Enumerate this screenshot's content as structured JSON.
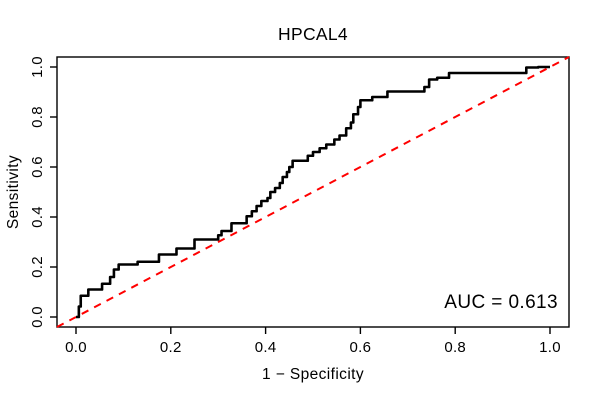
{
  "figure": {
    "background": "#ffffff",
    "frame_color": "#000000"
  },
  "chart_data": {
    "type": "line",
    "subtype": "roc-step-curve",
    "title": "HPCAL4",
    "xlabel": "1 − Specificity",
    "ylabel": "Sensitivity",
    "annotation": "AUC = 0.613",
    "auc_value": 0.613,
    "xlim": [
      0.0,
      1.0
    ],
    "ylim": [
      0.0,
      1.0
    ],
    "grid": false,
    "legend": "none",
    "x_ticks": [
      0.0,
      0.2,
      0.4,
      0.6,
      0.8,
      1.0
    ],
    "x_tick_labels": [
      "0.0",
      "0.2",
      "0.4",
      "0.6",
      "0.8",
      "1.0"
    ],
    "y_ticks": [
      0.0,
      0.2,
      0.4,
      0.6,
      0.8,
      1.0
    ],
    "y_tick_labels": [
      "0.0",
      "0.2",
      "0.4",
      "0.6",
      "0.8",
      "1.0"
    ],
    "series": [
      {
        "name": "ROC curve",
        "color": "#000000",
        "line_style": "solid",
        "line_width": 2.6,
        "points": [
          [
            0.0,
            0.0
          ],
          [
            0.006,
            0.0
          ],
          [
            0.006,
            0.042
          ],
          [
            0.01,
            0.042
          ],
          [
            0.01,
            0.085
          ],
          [
            0.026,
            0.085
          ],
          [
            0.026,
            0.11
          ],
          [
            0.055,
            0.11
          ],
          [
            0.055,
            0.133
          ],
          [
            0.072,
            0.133
          ],
          [
            0.072,
            0.16
          ],
          [
            0.08,
            0.16
          ],
          [
            0.08,
            0.19
          ],
          [
            0.09,
            0.19
          ],
          [
            0.09,
            0.21
          ],
          [
            0.13,
            0.21
          ],
          [
            0.13,
            0.221
          ],
          [
            0.175,
            0.221
          ],
          [
            0.175,
            0.25
          ],
          [
            0.212,
            0.25
          ],
          [
            0.212,
            0.274
          ],
          [
            0.25,
            0.274
          ],
          [
            0.25,
            0.31
          ],
          [
            0.3,
            0.31
          ],
          [
            0.3,
            0.327
          ],
          [
            0.307,
            0.327
          ],
          [
            0.307,
            0.344
          ],
          [
            0.328,
            0.344
          ],
          [
            0.328,
            0.375
          ],
          [
            0.36,
            0.375
          ],
          [
            0.36,
            0.403
          ],
          [
            0.371,
            0.403
          ],
          [
            0.371,
            0.423
          ],
          [
            0.381,
            0.423
          ],
          [
            0.381,
            0.444
          ],
          [
            0.391,
            0.444
          ],
          [
            0.391,
            0.464
          ],
          [
            0.404,
            0.464
          ],
          [
            0.404,
            0.476
          ],
          [
            0.41,
            0.476
          ],
          [
            0.41,
            0.5
          ],
          [
            0.42,
            0.5
          ],
          [
            0.42,
            0.516
          ],
          [
            0.43,
            0.516
          ],
          [
            0.43,
            0.536
          ],
          [
            0.436,
            0.536
          ],
          [
            0.436,
            0.56
          ],
          [
            0.445,
            0.56
          ],
          [
            0.445,
            0.58
          ],
          [
            0.45,
            0.58
          ],
          [
            0.45,
            0.6
          ],
          [
            0.457,
            0.6
          ],
          [
            0.457,
            0.625
          ],
          [
            0.489,
            0.625
          ],
          [
            0.489,
            0.645
          ],
          [
            0.5,
            0.645
          ],
          [
            0.5,
            0.66
          ],
          [
            0.514,
            0.66
          ],
          [
            0.514,
            0.675
          ],
          [
            0.528,
            0.675
          ],
          [
            0.528,
            0.69
          ],
          [
            0.545,
            0.69
          ],
          [
            0.545,
            0.71
          ],
          [
            0.556,
            0.71
          ],
          [
            0.556,
            0.726
          ],
          [
            0.57,
            0.726
          ],
          [
            0.57,
            0.755
          ],
          [
            0.58,
            0.755
          ],
          [
            0.58,
            0.778
          ],
          [
            0.585,
            0.778
          ],
          [
            0.585,
            0.811
          ],
          [
            0.595,
            0.811
          ],
          [
            0.595,
            0.84
          ],
          [
            0.6,
            0.84
          ],
          [
            0.6,
            0.867
          ],
          [
            0.625,
            0.867
          ],
          [
            0.625,
            0.88
          ],
          [
            0.657,
            0.88
          ],
          [
            0.657,
            0.902
          ],
          [
            0.735,
            0.902
          ],
          [
            0.735,
            0.92
          ],
          [
            0.745,
            0.92
          ],
          [
            0.745,
            0.95
          ],
          [
            0.762,
            0.95
          ],
          [
            0.762,
            0.957
          ],
          [
            0.787,
            0.957
          ],
          [
            0.787,
            0.976
          ],
          [
            0.95,
            0.976
          ],
          [
            0.95,
            0.998
          ],
          [
            0.975,
            0.998
          ],
          [
            0.975,
            1.0
          ],
          [
            1.0,
            1.0
          ]
        ]
      },
      {
        "name": "chance diagonal",
        "color": "#ff0000",
        "line_style": "dashed",
        "line_width": 2,
        "points": [
          [
            0.0,
            0.0
          ],
          [
            1.0,
            1.0
          ]
        ]
      }
    ]
  }
}
